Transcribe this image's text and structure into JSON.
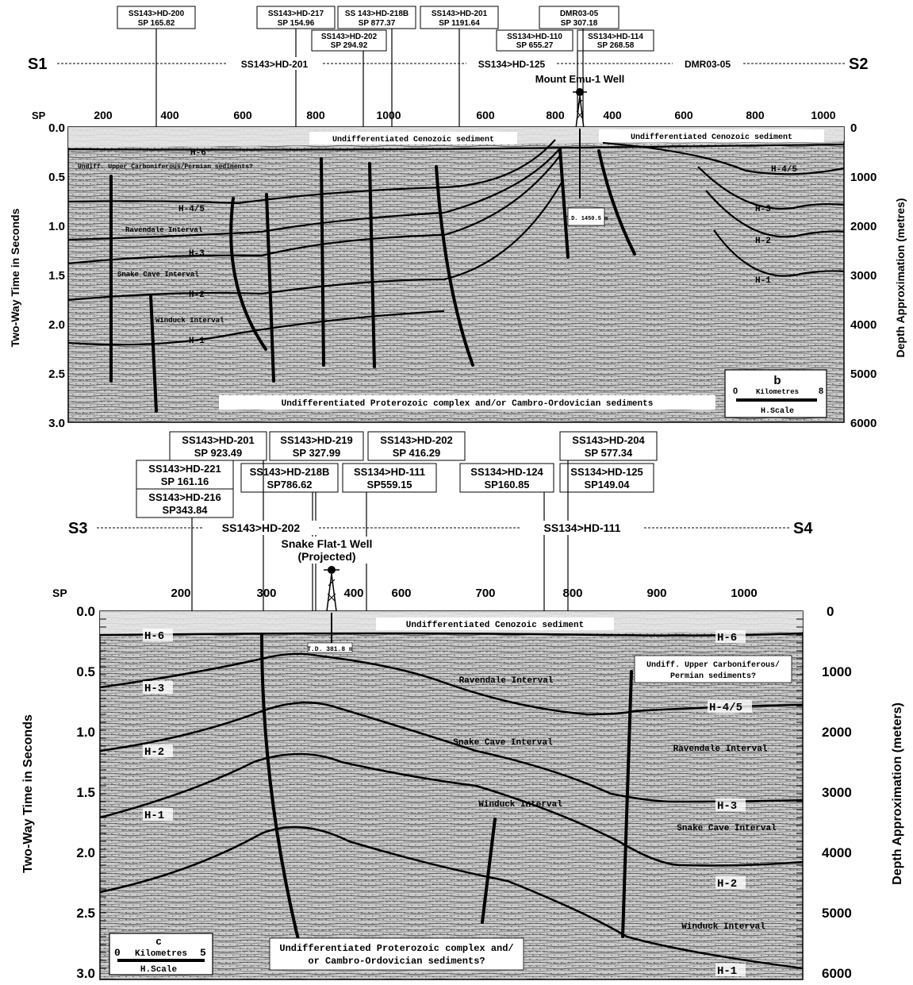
{
  "panel_b": {
    "section_start": "S1",
    "section_end": "S2",
    "line_segments": [
      "SS143>HD-201",
      "SS134>HD-125",
      "DMR03-05"
    ],
    "well_name": "Mount Emu-1 Well",
    "td_label": "T.D. 1450.5 m",
    "tie_boxes": [
      {
        "line": "SS143>HD-200",
        "sp": "SP 165.82"
      },
      {
        "line": "SS143>HD-217",
        "sp": "SP 154.96"
      },
      {
        "line": "SS 143>HD-218B",
        "sp": "SP 877.37"
      },
      {
        "line": "SS143>HD-202",
        "sp": "SP 294.92"
      },
      {
        "line": "SS143>HD-201",
        "sp": "SP 1191.64"
      },
      {
        "line": "DMR03-05",
        "sp": "SP 307.18"
      },
      {
        "line": "SS134>HD-110",
        "sp": "SP 655.27"
      },
      {
        "line": "SS134>HD-114",
        "sp": "SP 268.58"
      }
    ],
    "sp_axis_title": "SP",
    "sp_ticks": [
      "200",
      "400",
      "600",
      "800",
      "1000",
      "600",
      "800",
      "400",
      "600",
      "800",
      "1000"
    ],
    "time_ticks": [
      "0.0",
      "0.5",
      "1.0",
      "1.5",
      "2.0",
      "2.5",
      "3.0"
    ],
    "depth_ticks": [
      "0",
      "1000",
      "2000",
      "3000",
      "4000",
      "5000",
      "6000"
    ],
    "left_axis_title": "Two-Way Time in Seconds",
    "right_axis_title": "Depth Approximation (metres)",
    "horizons": [
      "H-6",
      "H-4/5",
      "H-3",
      "H-2",
      "H-1",
      "H-4/5",
      "H-3",
      "H-2",
      "H-1"
    ],
    "unit_labels": [
      "Undifferentiated Cenozoic sediment",
      "Undifferentiated Cenozoic sediment",
      "Undiff. Upper Carboniferous/Permian sediments?",
      "Ravendale Interval",
      "Snake Cave Interval",
      "Winduck Interval",
      "Undifferentiated Proterozoic complex and/or Cambro-Ordovician sediments"
    ],
    "scale": {
      "letter": "b",
      "min": "0",
      "max": "8",
      "unit": "Kilometres",
      "label": "H.Scale"
    }
  },
  "panel_c": {
    "section_start": "S3",
    "section_end": "S4",
    "line_segments": [
      "SS143>HD-202",
      "SS134>HD-111"
    ],
    "well_name": [
      "Snake Flat-1 Well",
      "(Projected)"
    ],
    "td_label": "T.D. 381.8 m",
    "tie_boxes": [
      {
        "line": "SS143>HD-201",
        "sp": "SP 923.49"
      },
      {
        "line": "SS143>HD-219",
        "sp": "SP 327.99"
      },
      {
        "line": "SS143>HD-202",
        "sp": "SP 416.29"
      },
      {
        "line": "SS143>HD-204",
        "sp": "SP 577.34"
      },
      {
        "line": "SS143>HD-221",
        "sp": "SP 161.16"
      },
      {
        "line": "SS143>HD-218B",
        "sp": "SP786.62"
      },
      {
        "line": "SS134>HD-111",
        "sp": "SP559.15"
      },
      {
        "line": "SS134>HD-124",
        "sp": "SP160.85"
      },
      {
        "line": "SS134>HD-125",
        "sp": "SP149.04"
      },
      {
        "line": "SS143>HD-216",
        "sp": "SP343.84"
      }
    ],
    "sp_axis_title": "SP",
    "sp_ticks": [
      "200",
      "300",
      "400",
      "600",
      "700",
      "800",
      "900",
      "1000"
    ],
    "time_ticks": [
      "0.0",
      "0.5",
      "1.0",
      "1.5",
      "2.0",
      "2.5",
      "3.0"
    ],
    "depth_ticks": [
      "0",
      "1000",
      "2000",
      "3000",
      "4000",
      "5000",
      "6000"
    ],
    "left_axis_title": "Two-Way Time in Seconds",
    "right_axis_title": "Depth Approximation (meters)",
    "horizons": [
      "H-6",
      "H-3",
      "H-2",
      "H-1",
      "H-6",
      "H-4/5",
      "H-3",
      "H-2",
      "H-1"
    ],
    "unit_labels": [
      "Undifferentiated Cenozoic sediment",
      "Ravendale Interval",
      "Snake Cave Interval",
      "Winduck Interval",
      "Ravendale Interval",
      "Snake Cave Interval",
      "Winduck Interval",
      [
        "Undiff. Upper Carboniferous/",
        "Permian sediments?"
      ],
      [
        "Undifferentiated Proterozoic complex and/",
        "or Cambro-Ordovician sediments?"
      ]
    ],
    "scale": {
      "letter": "c",
      "min": "0",
      "max": "5",
      "unit": "Kilometres",
      "label": "H.Scale"
    }
  }
}
